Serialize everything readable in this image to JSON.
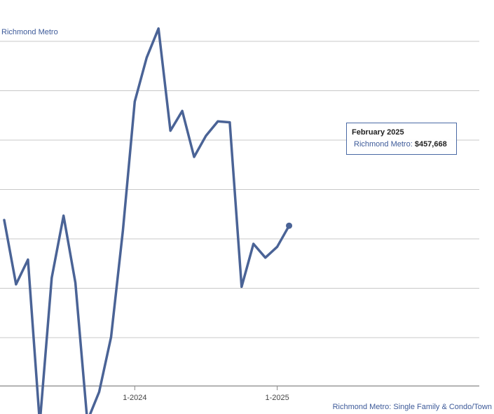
{
  "chart_data": {
    "type": "line",
    "title": "",
    "legend_top": "Richmond Metro",
    "legend_bottom": "Richmond Metro: Single Family & Condo/Town",
    "x_tick_labels": [
      "1-2024",
      "1-2025"
    ],
    "series": [
      {
        "name": "Richmond Metro",
        "color": "#4a6396",
        "x": [
          "2023-02",
          "2023-03",
          "2023-04",
          "2023-05",
          "2023-06",
          "2023-07",
          "2023-08",
          "2023-09",
          "2023-10",
          "2023-11",
          "2023-12",
          "2024-01",
          "2024-02",
          "2024-03",
          "2024-04",
          "2024-05",
          "2024-06",
          "2024-07",
          "2024-08",
          "2024-09",
          "2024-10",
          "2024-11",
          "2024-12",
          "2025-01",
          "2025-02"
        ],
        "values": [
          458810,
          445800,
          450800,
          417600,
          447100,
          459700,
          446100,
          418100,
          424000,
          435100,
          456700,
          482800,
          491700,
          497600,
          476900,
          480900,
          471600,
          475900,
          478800,
          478600,
          445300,
          454000,
          451200,
          453400,
          457668
        ]
      }
    ],
    "ylim": [
      406000,
      503000
    ],
    "grid": true
  },
  "tooltip": {
    "title": "February 2025",
    "series_label": "Richmond Metro:",
    "value": "$457,668"
  }
}
